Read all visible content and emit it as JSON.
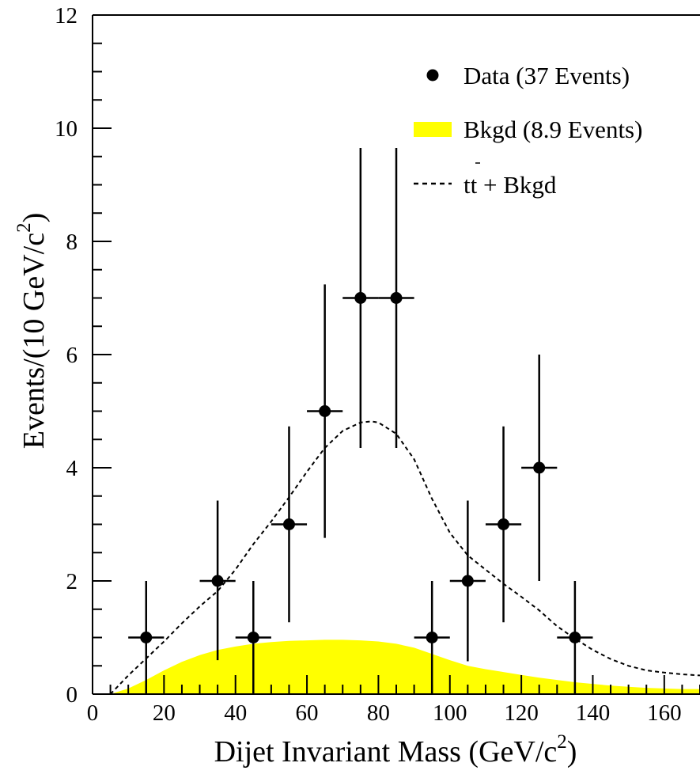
{
  "chart_data": {
    "type": "scatter",
    "xlabel": {
      "main": "Dijet Invariant Mass (GeV/c",
      "sup": "2",
      "tail": ")"
    },
    "ylabel": {
      "main": "Events/(10 GeV/c",
      "sup": "2",
      "tail": ")"
    },
    "xlim": [
      0,
      170
    ],
    "ylim": [
      0,
      12
    ],
    "x_ticks": [
      0,
      20,
      40,
      60,
      80,
      100,
      120,
      140,
      160
    ],
    "y_ticks": [
      0,
      2,
      4,
      6,
      8,
      10,
      12
    ],
    "x_minor_step": 5,
    "y_minor_step": 0.5,
    "grid": false,
    "legend_position": "top-right",
    "legend": [
      {
        "key": "data",
        "label": "Data (37 Events)",
        "style": "marker"
      },
      {
        "key": "bkgd",
        "label": "Bkgd (8.9 Events)",
        "style": "fill"
      },
      {
        "key": "ttbar",
        "label_main": "tt",
        "label_tail": " + Bkgd",
        "style": "dashed"
      }
    ],
    "colors": {
      "background_fill": "#ffff00",
      "marker": "#000000",
      "line": "#000000"
    },
    "series": [
      {
        "name": "Data (37 Events)",
        "type": "points_with_errors",
        "bin_halfwidth": 5,
        "points": [
          {
            "x": 15,
            "y": 1,
            "err_lo": 1.0,
            "err_hi": 1.0
          },
          {
            "x": 35,
            "y": 2,
            "err_lo": 1.4,
            "err_hi": 1.42
          },
          {
            "x": 45,
            "y": 1,
            "err_lo": 1.0,
            "err_hi": 1.0
          },
          {
            "x": 55,
            "y": 3,
            "err_lo": 1.73,
            "err_hi": 1.73
          },
          {
            "x": 65,
            "y": 5,
            "err_lo": 2.24,
            "err_hi": 2.24
          },
          {
            "x": 75,
            "y": 7,
            "err_lo": 2.65,
            "err_hi": 2.65
          },
          {
            "x": 85,
            "y": 7,
            "err_lo": 2.65,
            "err_hi": 2.65
          },
          {
            "x": 95,
            "y": 1,
            "err_lo": 1.0,
            "err_hi": 1.0
          },
          {
            "x": 105,
            "y": 2,
            "err_lo": 1.42,
            "err_hi": 1.42
          },
          {
            "x": 115,
            "y": 3,
            "err_lo": 1.73,
            "err_hi": 1.73
          },
          {
            "x": 125,
            "y": 4,
            "err_lo": 2.0,
            "err_hi": 2.0
          },
          {
            "x": 135,
            "y": 1,
            "err_lo": 1.0,
            "err_hi": 1.0
          }
        ]
      },
      {
        "name": "Bkgd (8.9 Events)",
        "type": "area",
        "x": [
          5,
          10,
          15,
          20,
          25,
          30,
          35,
          40,
          45,
          50,
          55,
          60,
          65,
          70,
          75,
          80,
          85,
          90,
          95,
          100,
          105,
          110,
          115,
          120,
          125,
          130,
          135,
          140,
          145,
          150,
          155,
          160,
          165,
          170
        ],
        "y": [
          0.0,
          0.1,
          0.25,
          0.42,
          0.57,
          0.69,
          0.78,
          0.84,
          0.89,
          0.92,
          0.94,
          0.95,
          0.96,
          0.96,
          0.95,
          0.93,
          0.89,
          0.82,
          0.71,
          0.6,
          0.5,
          0.44,
          0.39,
          0.34,
          0.29,
          0.25,
          0.21,
          0.18,
          0.15,
          0.13,
          0.11,
          0.1,
          0.09,
          0.09
        ]
      },
      {
        "name": "tt + Bkgd",
        "type": "line",
        "x": [
          5,
          10,
          15,
          20,
          25,
          30,
          35,
          40,
          45,
          50,
          55,
          60,
          65,
          70,
          75,
          78,
          80,
          85,
          90,
          95,
          100,
          105,
          110,
          115,
          120,
          125,
          130,
          135,
          140,
          145,
          150,
          155,
          160,
          165,
          170
        ],
        "y": [
          0.0,
          0.33,
          0.63,
          0.93,
          1.25,
          1.55,
          1.82,
          2.2,
          2.65,
          3.05,
          3.48,
          3.93,
          4.35,
          4.65,
          4.8,
          4.82,
          4.8,
          4.6,
          4.15,
          3.45,
          2.85,
          2.45,
          2.2,
          1.95,
          1.72,
          1.48,
          1.2,
          0.98,
          0.78,
          0.62,
          0.5,
          0.42,
          0.38,
          0.35,
          0.33
        ]
      }
    ]
  }
}
